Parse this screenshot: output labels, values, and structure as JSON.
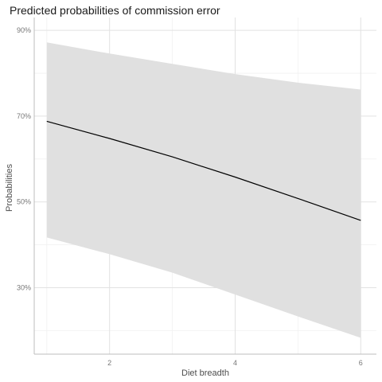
{
  "chart_data": {
    "type": "line",
    "title": "Predicted probabilities of commission error",
    "xlabel": "Diet breadth",
    "ylabel": "Probabilities",
    "xlim": [
      0.8,
      6.25
    ],
    "ylim": [
      0.145,
      0.93
    ],
    "x_ticks": [
      2,
      4,
      6
    ],
    "x_tick_labels": [
      "2",
      "4",
      "6"
    ],
    "y_ticks": [
      0.3,
      0.5,
      0.7,
      0.9
    ],
    "y_tick_labels": [
      "30%",
      "50%",
      "70%",
      "90%"
    ],
    "grid": true,
    "series": [
      {
        "x": [
          1,
          2,
          3,
          4,
          5,
          6
        ],
        "y": [
          0.688,
          0.648,
          0.605,
          0.558,
          0.508,
          0.457
        ],
        "lower": [
          0.417,
          0.378,
          0.335,
          0.284,
          0.233,
          0.183
        ],
        "upper": [
          0.872,
          0.846,
          0.822,
          0.798,
          0.778,
          0.762
        ]
      }
    ],
    "colors": {
      "line": "#000000",
      "band": "#e0e0e0",
      "grid_major": "#e2e2e2",
      "grid_minor": "#f1f1f1",
      "axis": "#bdbdbd"
    }
  }
}
